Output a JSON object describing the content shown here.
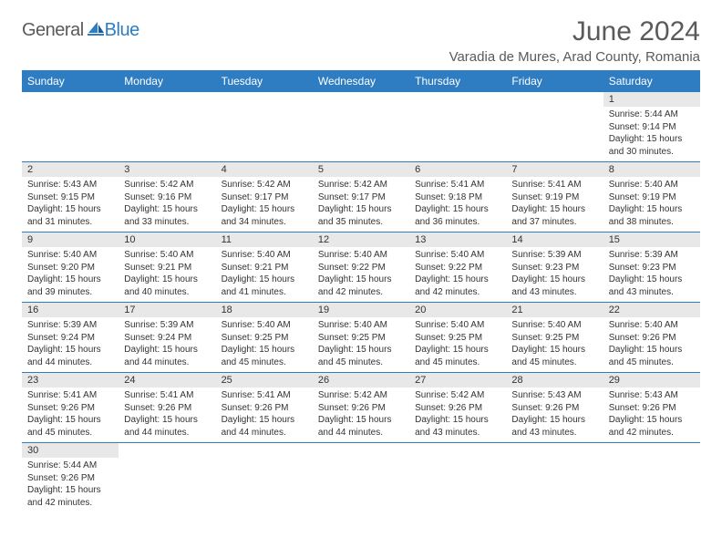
{
  "logo": {
    "word1": "General",
    "word2": "Blue"
  },
  "header": {
    "month_title": "June 2024",
    "location": "Varadia de Mures, Arad County, Romania"
  },
  "style": {
    "header_bg": "#2e7cc1",
    "header_text": "#ffffff",
    "daynum_bg": "#e8e8e8",
    "border_color": "#2e7cc1",
    "logo_gray": "#5a5a5a",
    "logo_blue": "#2e7cc1",
    "font_family": "Arial",
    "month_title_fontsize": 30,
    "location_fontsize": 15,
    "weekday_fontsize": 12,
    "daynum_fontsize": 11,
    "body_fontsize": 10
  },
  "weekdays": [
    "Sunday",
    "Monday",
    "Tuesday",
    "Wednesday",
    "Thursday",
    "Friday",
    "Saturday"
  ],
  "weeks": [
    [
      null,
      null,
      null,
      null,
      null,
      null,
      {
        "n": "1",
        "sunrise": "Sunrise: 5:44 AM",
        "sunset": "Sunset: 9:14 PM",
        "dl1": "Daylight: 15 hours",
        "dl2": "and 30 minutes."
      }
    ],
    [
      {
        "n": "2",
        "sunrise": "Sunrise: 5:43 AM",
        "sunset": "Sunset: 9:15 PM",
        "dl1": "Daylight: 15 hours",
        "dl2": "and 31 minutes."
      },
      {
        "n": "3",
        "sunrise": "Sunrise: 5:42 AM",
        "sunset": "Sunset: 9:16 PM",
        "dl1": "Daylight: 15 hours",
        "dl2": "and 33 minutes."
      },
      {
        "n": "4",
        "sunrise": "Sunrise: 5:42 AM",
        "sunset": "Sunset: 9:17 PM",
        "dl1": "Daylight: 15 hours",
        "dl2": "and 34 minutes."
      },
      {
        "n": "5",
        "sunrise": "Sunrise: 5:42 AM",
        "sunset": "Sunset: 9:17 PM",
        "dl1": "Daylight: 15 hours",
        "dl2": "and 35 minutes."
      },
      {
        "n": "6",
        "sunrise": "Sunrise: 5:41 AM",
        "sunset": "Sunset: 9:18 PM",
        "dl1": "Daylight: 15 hours",
        "dl2": "and 36 minutes."
      },
      {
        "n": "7",
        "sunrise": "Sunrise: 5:41 AM",
        "sunset": "Sunset: 9:19 PM",
        "dl1": "Daylight: 15 hours",
        "dl2": "and 37 minutes."
      },
      {
        "n": "8",
        "sunrise": "Sunrise: 5:40 AM",
        "sunset": "Sunset: 9:19 PM",
        "dl1": "Daylight: 15 hours",
        "dl2": "and 38 minutes."
      }
    ],
    [
      {
        "n": "9",
        "sunrise": "Sunrise: 5:40 AM",
        "sunset": "Sunset: 9:20 PM",
        "dl1": "Daylight: 15 hours",
        "dl2": "and 39 minutes."
      },
      {
        "n": "10",
        "sunrise": "Sunrise: 5:40 AM",
        "sunset": "Sunset: 9:21 PM",
        "dl1": "Daylight: 15 hours",
        "dl2": "and 40 minutes."
      },
      {
        "n": "11",
        "sunrise": "Sunrise: 5:40 AM",
        "sunset": "Sunset: 9:21 PM",
        "dl1": "Daylight: 15 hours",
        "dl2": "and 41 minutes."
      },
      {
        "n": "12",
        "sunrise": "Sunrise: 5:40 AM",
        "sunset": "Sunset: 9:22 PM",
        "dl1": "Daylight: 15 hours",
        "dl2": "and 42 minutes."
      },
      {
        "n": "13",
        "sunrise": "Sunrise: 5:40 AM",
        "sunset": "Sunset: 9:22 PM",
        "dl1": "Daylight: 15 hours",
        "dl2": "and 42 minutes."
      },
      {
        "n": "14",
        "sunrise": "Sunrise: 5:39 AM",
        "sunset": "Sunset: 9:23 PM",
        "dl1": "Daylight: 15 hours",
        "dl2": "and 43 minutes."
      },
      {
        "n": "15",
        "sunrise": "Sunrise: 5:39 AM",
        "sunset": "Sunset: 9:23 PM",
        "dl1": "Daylight: 15 hours",
        "dl2": "and 43 minutes."
      }
    ],
    [
      {
        "n": "16",
        "sunrise": "Sunrise: 5:39 AM",
        "sunset": "Sunset: 9:24 PM",
        "dl1": "Daylight: 15 hours",
        "dl2": "and 44 minutes."
      },
      {
        "n": "17",
        "sunrise": "Sunrise: 5:39 AM",
        "sunset": "Sunset: 9:24 PM",
        "dl1": "Daylight: 15 hours",
        "dl2": "and 44 minutes."
      },
      {
        "n": "18",
        "sunrise": "Sunrise: 5:40 AM",
        "sunset": "Sunset: 9:25 PM",
        "dl1": "Daylight: 15 hours",
        "dl2": "and 45 minutes."
      },
      {
        "n": "19",
        "sunrise": "Sunrise: 5:40 AM",
        "sunset": "Sunset: 9:25 PM",
        "dl1": "Daylight: 15 hours",
        "dl2": "and 45 minutes."
      },
      {
        "n": "20",
        "sunrise": "Sunrise: 5:40 AM",
        "sunset": "Sunset: 9:25 PM",
        "dl1": "Daylight: 15 hours",
        "dl2": "and 45 minutes."
      },
      {
        "n": "21",
        "sunrise": "Sunrise: 5:40 AM",
        "sunset": "Sunset: 9:25 PM",
        "dl1": "Daylight: 15 hours",
        "dl2": "and 45 minutes."
      },
      {
        "n": "22",
        "sunrise": "Sunrise: 5:40 AM",
        "sunset": "Sunset: 9:26 PM",
        "dl1": "Daylight: 15 hours",
        "dl2": "and 45 minutes."
      }
    ],
    [
      {
        "n": "23",
        "sunrise": "Sunrise: 5:41 AM",
        "sunset": "Sunset: 9:26 PM",
        "dl1": "Daylight: 15 hours",
        "dl2": "and 45 minutes."
      },
      {
        "n": "24",
        "sunrise": "Sunrise: 5:41 AM",
        "sunset": "Sunset: 9:26 PM",
        "dl1": "Daylight: 15 hours",
        "dl2": "and 44 minutes."
      },
      {
        "n": "25",
        "sunrise": "Sunrise: 5:41 AM",
        "sunset": "Sunset: 9:26 PM",
        "dl1": "Daylight: 15 hours",
        "dl2": "and 44 minutes."
      },
      {
        "n": "26",
        "sunrise": "Sunrise: 5:42 AM",
        "sunset": "Sunset: 9:26 PM",
        "dl1": "Daylight: 15 hours",
        "dl2": "and 44 minutes."
      },
      {
        "n": "27",
        "sunrise": "Sunrise: 5:42 AM",
        "sunset": "Sunset: 9:26 PM",
        "dl1": "Daylight: 15 hours",
        "dl2": "and 43 minutes."
      },
      {
        "n": "28",
        "sunrise": "Sunrise: 5:43 AM",
        "sunset": "Sunset: 9:26 PM",
        "dl1": "Daylight: 15 hours",
        "dl2": "and 43 minutes."
      },
      {
        "n": "29",
        "sunrise": "Sunrise: 5:43 AM",
        "sunset": "Sunset: 9:26 PM",
        "dl1": "Daylight: 15 hours",
        "dl2": "and 42 minutes."
      }
    ],
    [
      {
        "n": "30",
        "sunrise": "Sunrise: 5:44 AM",
        "sunset": "Sunset: 9:26 PM",
        "dl1": "Daylight: 15 hours",
        "dl2": "and 42 minutes."
      },
      null,
      null,
      null,
      null,
      null,
      null
    ]
  ]
}
